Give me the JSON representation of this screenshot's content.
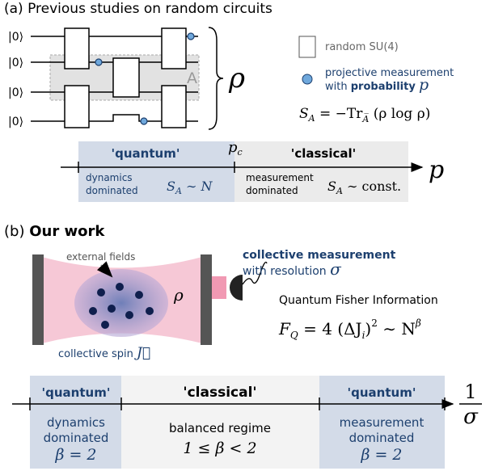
{
  "panel_a": {
    "label": "(a)",
    "title": "Previous studies on random circuits",
    "inputs": [
      "|0⟩",
      "|0⟩",
      "|0⟩",
      "|0⟩"
    ],
    "region": "A",
    "state": "ρ",
    "legend": {
      "gate": "random SU(4)",
      "measure_line1": "projective measurement",
      "measure_with": "with",
      "measure_prob": "probability",
      "measure_p": "p"
    },
    "entropy": {
      "s": "S",
      "s_sub": "A",
      "eq": " = −Tr",
      "tr_sub": "A̅",
      "arg": " (ρ log ρ)"
    },
    "phase": {
      "quantum": "'quantum'",
      "pc": "p",
      "pc_sub": "c",
      "classical": "'classical'",
      "left_line1": "dynamics",
      "left_line2": "dominated",
      "left_s": "S",
      "left_s_sub": "A",
      "left_rel": " ∼ N",
      "right_line1": "measurement",
      "right_line2": "dominated",
      "right_s": "S",
      "right_s_sub": "A",
      "right_rel": " ∼ const.",
      "axis": "p"
    }
  },
  "panel_b": {
    "label": "(b)",
    "title": "Our work",
    "fields": "external fields",
    "state": "ρ",
    "spin": "collective spin",
    "spin_symbol": "J⃗",
    "measurement": "collective measurement",
    "resolution": "with resolution",
    "sigma": "σ",
    "qfi": "Quantum Fisher Information",
    "formula": {
      "f": "F",
      "f_sub": "Q",
      "body": " = 4 (ΔJ",
      "j_sub": "i",
      "close": ")",
      "sq": "2",
      "rel": " ∼ N",
      "beta": "β"
    },
    "phase": {
      "left_title": "'quantum'",
      "left_line1": "dynamics",
      "left_line2": "dominated",
      "left_beta": "β = 2",
      "mid_title": "'classical'",
      "mid_line1": "balanced regime",
      "mid_beta": "1 ≤ β < 2",
      "right_title": "'quantum'",
      "right_line1": "measurement",
      "right_line2": "dominated",
      "right_beta": "β = 2",
      "axis_num": "1",
      "axis_den": "σ"
    }
  }
}
